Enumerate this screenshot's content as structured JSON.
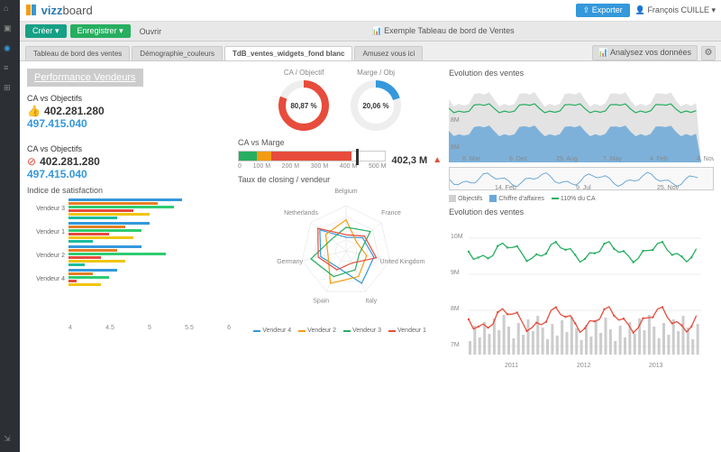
{
  "logo_prefix": "vizz",
  "logo_suffix": "board",
  "export_btn": "Exporter",
  "user_name": "François CUILLE",
  "create_btn": "Créer",
  "save_btn": "Enregistrer",
  "open_btn": "Ouvrir",
  "doc_title": "Exemple Tableau de bord de Ventes",
  "analyze_btn": "Analysez vos données",
  "tabs": [
    {
      "label": "Tableau de bord des ventes",
      "active": false
    },
    {
      "label": "Démographie_couleurs",
      "active": false
    },
    {
      "label": "TdB_ventes_widgets_fond blanc",
      "active": true
    },
    {
      "label": "Amusez vous ici",
      "active": false
    }
  ],
  "perf_title": "Performance Vendeurs",
  "kpi1": {
    "label": "CA vs Objectifs",
    "icon": "up",
    "v1": "402.281.280",
    "v2": "497.415.040"
  },
  "kpi2": {
    "label": "CA vs Objectifs",
    "icon": "down",
    "v1": "402.281.280",
    "v2": "497.415.040"
  },
  "donut1": {
    "label": "CA / Objectif",
    "value": "80,87 %",
    "pct": 80.87,
    "color": "#e74c3c"
  },
  "donut2": {
    "label": "Marge / Obj",
    "value": "20,06 %",
    "pct": 20.06,
    "color": "#3498db"
  },
  "gauge": {
    "title": "CA vs Marge",
    "value": "402,3 M",
    "ticks": [
      "0",
      "100 M",
      "200 M",
      "300 M",
      "400 M",
      "500 M"
    ],
    "segments": [
      {
        "w": 12,
        "c": "#27ae60"
      },
      {
        "w": 10,
        "c": "#f39c12"
      },
      {
        "w": 55,
        "c": "#e74c3c"
      }
    ],
    "marker": 80
  },
  "hbar": {
    "title": "Indice de satisfaction",
    "vendors": [
      "Vendeur 3",
      "Vendeur 1",
      "Vendeur 2",
      "Vendeur 4"
    ],
    "series_colors": [
      "#3498db",
      "#e67e22",
      "#2ecc71",
      "#e74c3c",
      "#f1c40f",
      "#1abc9c"
    ],
    "data": [
      [
        5.4,
        5.1,
        5.3,
        4.8,
        5.0,
        4.6
      ],
      [
        5.0,
        4.7,
        4.9,
        4.5,
        4.8,
        4.3
      ],
      [
        4.9,
        4.6,
        5.2,
        4.4,
        4.7,
        4.2
      ],
      [
        4.6,
        4.3,
        4.5,
        4.1,
        4.4,
        4.0
      ]
    ],
    "axis": [
      "4",
      "4.5",
      "5",
      "5.5",
      "6"
    ],
    "min": 4,
    "max": 6
  },
  "area": {
    "title": "Evolution des ventes",
    "ylabels": [
      "8M",
      "6M"
    ],
    "xlabels": [
      "8. Mar",
      "6. Dec",
      "29. Aug",
      "7. May",
      "4. Feb",
      "4. Nov"
    ],
    "colors": {
      "fill1": "#6ba8d8",
      "fill2": "#d0d0d0",
      "line": "#27ae60"
    }
  },
  "spark_labels": [
    "14. Feb",
    "9. Jul",
    "25. Nov"
  ],
  "area_legend": [
    {
      "label": "Objectifs",
      "color": "#d0d0d0",
      "type": "sw"
    },
    {
      "label": "Chiffre d'affaires",
      "color": "#6ba8d8",
      "type": "sw"
    },
    {
      "label": "110% du CA",
      "color": "#27ae60",
      "type": "line"
    }
  ],
  "radar": {
    "title": "Taux de closing / vendeur",
    "axes": [
      "Belgium",
      "France",
      "United Kingdom",
      "Italy",
      "Spain",
      "Germany",
      "Netherlands"
    ],
    "legend": [
      {
        "label": "Vendeur 4",
        "color": "#3498db"
      },
      {
        "label": "Vendeur 2",
        "color": "#f39c12"
      },
      {
        "label": "Vendeur 3",
        "color": "#27ae60"
      },
      {
        "label": "Vendeur 1",
        "color": "#e74c3c"
      }
    ]
  },
  "line2": {
    "title": "Evolution des ventes",
    "ylabels": [
      "10M",
      "9M",
      "8M",
      "7M"
    ],
    "xlabels": [
      "2011",
      "2012",
      "2013"
    ],
    "colors": {
      "green": "#27ae60",
      "red": "#e74c3c",
      "bars": "#ccc"
    }
  }
}
